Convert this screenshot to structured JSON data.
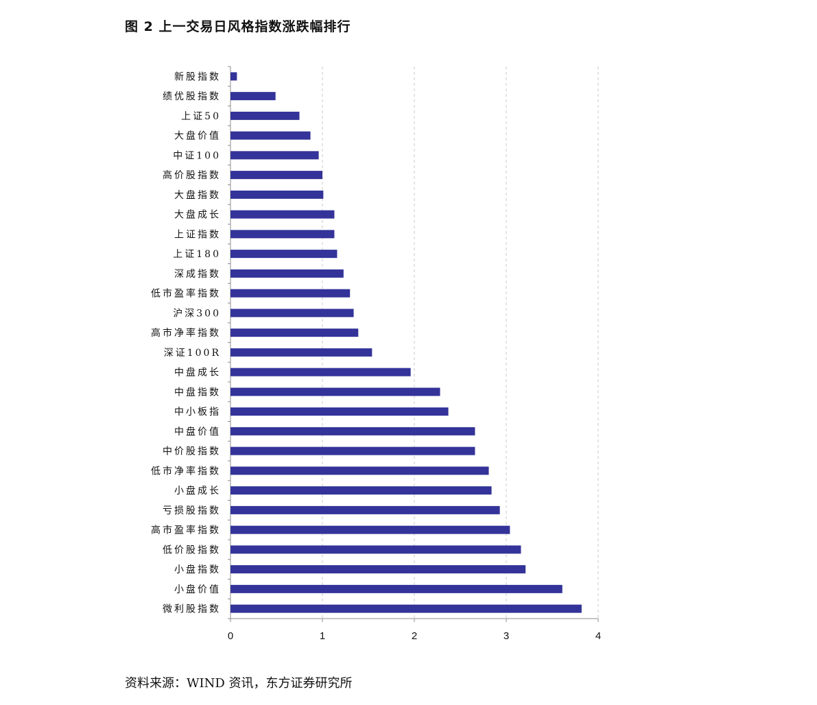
{
  "title": "图 2 上一交易日风格指数涨跌幅排行",
  "source": "资料来源：WIND 资讯，东方证券研究所",
  "chart_data": {
    "type": "bar",
    "orientation": "horizontal",
    "categories": [
      "新股指数",
      "绩优股指数",
      "上证50",
      "大盘价值",
      "中证100",
      "高价股指数",
      "大盘指数",
      "大盘成长",
      "上证指数",
      "上证180",
      "深成指数",
      "低市盈率指数",
      "沪深300",
      "高市净率指数",
      "深证100R",
      "中盘成长",
      "中盘指数",
      "中小板指",
      "中盘价值",
      "中价股指数",
      "低市净率指数",
      "小盘成长",
      "亏损股指数",
      "高市盈率指数",
      "低价股指数",
      "小盘指数",
      "小盘价值",
      "微利股指数"
    ],
    "values": [
      0.07,
      0.49,
      0.75,
      0.87,
      0.96,
      1.0,
      1.01,
      1.13,
      1.13,
      1.16,
      1.23,
      1.3,
      1.34,
      1.39,
      1.54,
      1.96,
      2.28,
      2.37,
      2.66,
      2.66,
      2.81,
      2.84,
      2.93,
      3.04,
      3.16,
      3.21,
      3.61,
      3.82
    ],
    "xlim": [
      0,
      4
    ],
    "xticks": [
      0,
      1,
      2,
      3,
      4
    ],
    "grid": true,
    "grid_style": "dashed-vertical",
    "legend": "none",
    "bar_color": "#333399",
    "grid_color": "#c8c8c8",
    "axis_color": "#8c8c8c"
  }
}
